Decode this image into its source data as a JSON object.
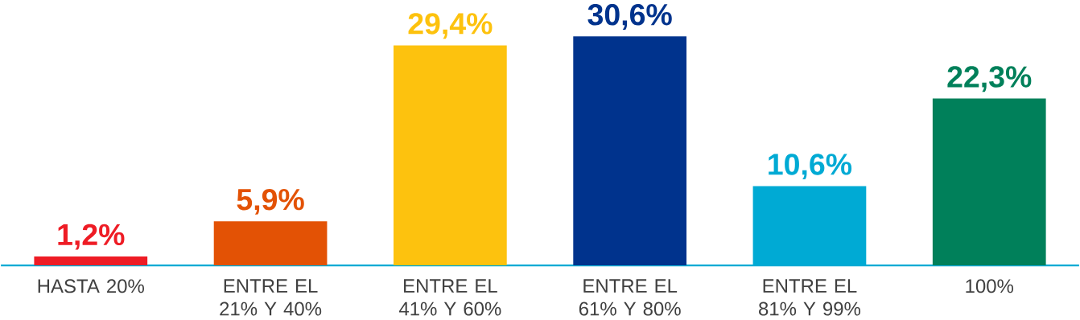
{
  "chart_data": {
    "type": "bar",
    "categories": [
      "HASTA 20%",
      "ENTRE EL 21% Y 40%",
      "ENTRE EL 41% Y 60%",
      "ENTRE EL 61% Y 80%",
      "ENTRE EL 81% Y 99%",
      "100%"
    ],
    "values": [
      1.2,
      5.9,
      29.4,
      30.6,
      10.6,
      22.3
    ],
    "value_labels": [
      "1,2%",
      "5,9%",
      "29,4%",
      "30,6%",
      "10,6%",
      "22,3%"
    ],
    "colors": [
      "#ee1c25",
      "#e35205",
      "#fdc20e",
      "#00338d",
      "#00aad4",
      "#00805a"
    ]
  }
}
